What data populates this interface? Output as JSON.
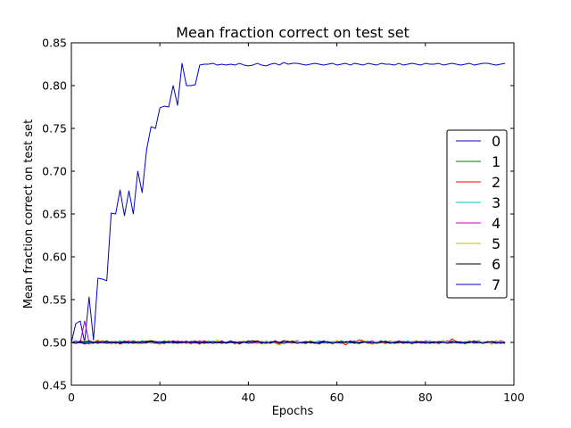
{
  "chart_data": {
    "type": "line",
    "title": "Mean fraction correct on test set",
    "xlabel": "Epochs",
    "ylabel": "Mean fraction correct on test set",
    "xlim": [
      0,
      100
    ],
    "ylim": [
      0.45,
      0.85
    ],
    "x_ticks": [
      "0",
      "20",
      "40",
      "60",
      "80",
      "100"
    ],
    "y_ticks": [
      "0.45",
      "0.50",
      "0.55",
      "0.60",
      "0.65",
      "0.70",
      "0.75",
      "0.80",
      "0.85"
    ],
    "grid": false,
    "legend_position": "center-right",
    "x": [
      0,
      1,
      2,
      3,
      4,
      5,
      6,
      7,
      8,
      9,
      10,
      11,
      12,
      13,
      14,
      15,
      16,
      17,
      18,
      19,
      20,
      21,
      22,
      23,
      24,
      25,
      26,
      27,
      28,
      29,
      30,
      31,
      32,
      33,
      34,
      35,
      36,
      37,
      38,
      39,
      40,
      41,
      42,
      43,
      44,
      45,
      46,
      47,
      48,
      49,
      50,
      51,
      52,
      53,
      54,
      55,
      56,
      57,
      58,
      59,
      60,
      61,
      62,
      63,
      64,
      65,
      66,
      67,
      68,
      69,
      70,
      71,
      72,
      73,
      74,
      75,
      76,
      77,
      78,
      79,
      80,
      81,
      82,
      83,
      84,
      85,
      86,
      87,
      88,
      89,
      90,
      91,
      92,
      93,
      94,
      95,
      96,
      97,
      98
    ],
    "series": [
      {
        "name": "0",
        "color": "#0000cc",
        "values": [
          0.5,
          0.522,
          0.525,
          0.5,
          0.553,
          0.503,
          0.575,
          0.574,
          0.572,
          0.651,
          0.65,
          0.678,
          0.648,
          0.677,
          0.65,
          0.7,
          0.675,
          0.725,
          0.752,
          0.75,
          0.774,
          0.776,
          0.775,
          0.8,
          0.777,
          0.826,
          0.8,
          0.8,
          0.801,
          0.824,
          0.825,
          0.825,
          0.826,
          0.824,
          0.825,
          0.824,
          0.825,
          0.824,
          0.826,
          0.824,
          0.823,
          0.824,
          0.826,
          0.824,
          0.823,
          0.825,
          0.826,
          0.824,
          0.827,
          0.825,
          0.826,
          0.826,
          0.825,
          0.824,
          0.825,
          0.826,
          0.825,
          0.824,
          0.825,
          0.826,
          0.824,
          0.825,
          0.826,
          0.824,
          0.826,
          0.825,
          0.824,
          0.826,
          0.825,
          0.824,
          0.826,
          0.825,
          0.825,
          0.824,
          0.826,
          0.824,
          0.825,
          0.826,
          0.825,
          0.824,
          0.826,
          0.825,
          0.825,
          0.826,
          0.824,
          0.825,
          0.826,
          0.825,
          0.824,
          0.825,
          0.826,
          0.824,
          0.825,
          0.826,
          0.826,
          0.825,
          0.824,
          0.825,
          0.826
        ]
      },
      {
        "name": "1",
        "color": "#008000",
        "values": [
          0.5,
          0.501,
          0.499,
          0.502,
          0.5,
          0.499,
          0.501,
          0.5,
          0.502,
          0.499,
          0.5,
          0.501,
          0.499,
          0.5,
          0.502,
          0.5,
          0.499,
          0.501,
          0.5,
          0.499,
          0.501,
          0.5,
          0.502,
          0.499,
          0.5,
          0.501,
          0.499,
          0.5,
          0.502,
          0.5,
          0.499,
          0.501,
          0.5,
          0.499,
          0.501,
          0.5,
          0.502,
          0.499,
          0.5,
          0.501,
          0.499,
          0.5,
          0.502,
          0.5,
          0.499,
          0.501,
          0.5,
          0.499,
          0.501,
          0.5,
          0.502,
          0.499,
          0.5,
          0.501,
          0.499,
          0.5,
          0.502,
          0.5,
          0.499,
          0.501,
          0.5,
          0.499,
          0.501,
          0.5,
          0.502,
          0.499,
          0.5,
          0.501,
          0.499,
          0.5,
          0.502,
          0.5,
          0.499,
          0.501,
          0.5,
          0.499,
          0.501,
          0.5,
          0.502,
          0.499,
          0.5,
          0.501,
          0.499,
          0.5,
          0.502,
          0.5,
          0.499,
          0.501,
          0.5,
          0.499,
          0.501,
          0.5,
          0.502,
          0.499,
          0.5,
          0.501,
          0.499,
          0.5,
          0.5
        ]
      },
      {
        "name": "2",
        "color": "#ff0000",
        "values": [
          0.5,
          0.499,
          0.502,
          0.5,
          0.498,
          0.501,
          0.5,
          0.502,
          0.499,
          0.5,
          0.501,
          0.498,
          0.5,
          0.502,
          0.499,
          0.501,
          0.5,
          0.499,
          0.502,
          0.5,
          0.498,
          0.501,
          0.5,
          0.499,
          0.502,
          0.5,
          0.499,
          0.501,
          0.5,
          0.498,
          0.502,
          0.5,
          0.499,
          0.501,
          0.5,
          0.499,
          0.502,
          0.5,
          0.498,
          0.501,
          0.5,
          0.499,
          0.502,
          0.5,
          0.499,
          0.501,
          0.5,
          0.498,
          0.502,
          0.5,
          0.499,
          0.501,
          0.5,
          0.499,
          0.502,
          0.5,
          0.498,
          0.501,
          0.5,
          0.499,
          0.502,
          0.5,
          0.497,
          0.501,
          0.5,
          0.503,
          0.502,
          0.5,
          0.498,
          0.501,
          0.5,
          0.499,
          0.502,
          0.5,
          0.499,
          0.501,
          0.5,
          0.498,
          0.502,
          0.5,
          0.499,
          0.501,
          0.5,
          0.499,
          0.502,
          0.5,
          0.504,
          0.501,
          0.5,
          0.499,
          0.502,
          0.5,
          0.499,
          0.501,
          0.5,
          0.498,
          0.502,
          0.5,
          0.499
        ]
      },
      {
        "name": "3",
        "color": "#00bfbf",
        "values": [
          0.5,
          0.502,
          0.5,
          0.499,
          0.501,
          0.5,
          0.502,
          0.499,
          0.5,
          0.501,
          0.5,
          0.502,
          0.499,
          0.5,
          0.501,
          0.499,
          0.502,
          0.5,
          0.499,
          0.501,
          0.5,
          0.502,
          0.499,
          0.5,
          0.501,
          0.5,
          0.502,
          0.499,
          0.5,
          0.501,
          0.499,
          0.502,
          0.5,
          0.499,
          0.501,
          0.5,
          0.502,
          0.499,
          0.5,
          0.501,
          0.5,
          0.502,
          0.499,
          0.5,
          0.501,
          0.499,
          0.502,
          0.5,
          0.499,
          0.501,
          0.5,
          0.502,
          0.499,
          0.5,
          0.501,
          0.5,
          0.502,
          0.499,
          0.5,
          0.501,
          0.499,
          0.502,
          0.5,
          0.499,
          0.501,
          0.5,
          0.502,
          0.499,
          0.5,
          0.501,
          0.5,
          0.502,
          0.499,
          0.5,
          0.501,
          0.499,
          0.502,
          0.5,
          0.499,
          0.501,
          0.5,
          0.502,
          0.499,
          0.5,
          0.501,
          0.5,
          0.502,
          0.499,
          0.5,
          0.501,
          0.499,
          0.502,
          0.5,
          0.499,
          0.501,
          0.5,
          0.502,
          0.499,
          0.5
        ]
      },
      {
        "name": "4",
        "color": "#bf00bf",
        "values": [
          0.5,
          0.501,
          0.5,
          0.525,
          0.5,
          0.499,
          0.502,
          0.5,
          0.499,
          0.501,
          0.5,
          0.499,
          0.502,
          0.5,
          0.499,
          0.501,
          0.5,
          0.502,
          0.499,
          0.5,
          0.501,
          0.499,
          0.5,
          0.502,
          0.5,
          0.499,
          0.501,
          0.5,
          0.499,
          0.502,
          0.5,
          0.499,
          0.501,
          0.5,
          0.502,
          0.499,
          0.5,
          0.501,
          0.499,
          0.5,
          0.502,
          0.5,
          0.499,
          0.501,
          0.5,
          0.499,
          0.502,
          0.5,
          0.499,
          0.501,
          0.5,
          0.502,
          0.499,
          0.5,
          0.501,
          0.499,
          0.5,
          0.502,
          0.5,
          0.499,
          0.501,
          0.5,
          0.499,
          0.502,
          0.5,
          0.499,
          0.501,
          0.5,
          0.502,
          0.499,
          0.5,
          0.501,
          0.499,
          0.5,
          0.502,
          0.5,
          0.499,
          0.501,
          0.5,
          0.499,
          0.502,
          0.5,
          0.499,
          0.501,
          0.5,
          0.502,
          0.499,
          0.5,
          0.501,
          0.499,
          0.5,
          0.502,
          0.5,
          0.499,
          0.501,
          0.5,
          0.499,
          0.502,
          0.5
        ]
      },
      {
        "name": "5",
        "color": "#bfbf00",
        "values": [
          0.501,
          0.499,
          0.5,
          0.502,
          0.499,
          0.501,
          0.503,
          0.499,
          0.5,
          0.498,
          0.501,
          0.5,
          0.502,
          0.499,
          0.501,
          0.498,
          0.5,
          0.502,
          0.499,
          0.501,
          0.5,
          0.498,
          0.502,
          0.5,
          0.499,
          0.501,
          0.5,
          0.498,
          0.502,
          0.5,
          0.499,
          0.501,
          0.5,
          0.503,
          0.499,
          0.5,
          0.501,
          0.498,
          0.5,
          0.502,
          0.499,
          0.501,
          0.5,
          0.498,
          0.502,
          0.5,
          0.499,
          0.497,
          0.5,
          0.502,
          0.499,
          0.501,
          0.5,
          0.498,
          0.502,
          0.5,
          0.499,
          0.501,
          0.5,
          0.498,
          0.502,
          0.5,
          0.499,
          0.501,
          0.5,
          0.498,
          0.502,
          0.5,
          0.499,
          0.501,
          0.5,
          0.498,
          0.502,
          0.5,
          0.499,
          0.501,
          0.5,
          0.498,
          0.502,
          0.5,
          0.499,
          0.501,
          0.5,
          0.498,
          0.502,
          0.5,
          0.499,
          0.501,
          0.5,
          0.498,
          0.502,
          0.5,
          0.499,
          0.501,
          0.5,
          0.498,
          0.502,
          0.5,
          0.499
        ]
      },
      {
        "name": "6",
        "color": "#000000",
        "values": [
          0.5,
          0.499,
          0.501,
          0.5,
          0.502,
          0.5,
          0.499,
          0.5,
          0.501,
          0.5,
          0.499,
          0.5,
          0.501,
          0.5,
          0.499,
          0.5,
          0.501,
          0.501,
          0.502,
          0.501,
          0.5,
          0.501,
          0.5,
          0.501,
          0.5,
          0.501,
          0.5,
          0.501,
          0.501,
          0.5,
          0.499,
          0.5,
          0.501,
          0.5,
          0.499,
          0.5,
          0.501,
          0.5,
          0.499,
          0.5,
          0.501,
          0.502,
          0.501,
          0.5,
          0.499,
          0.5,
          0.501,
          0.5,
          0.502,
          0.501,
          0.5,
          0.499,
          0.5,
          0.501,
          0.5,
          0.499,
          0.5,
          0.501,
          0.5,
          0.499,
          0.5,
          0.501,
          0.5,
          0.501,
          0.5,
          0.499,
          0.5,
          0.501,
          0.5,
          0.499,
          0.5,
          0.501,
          0.5,
          0.499,
          0.5,
          0.501,
          0.5,
          0.499,
          0.5,
          0.501,
          0.5,
          0.499,
          0.5,
          0.501,
          0.5,
          0.499,
          0.5,
          0.501,
          0.5,
          0.499,
          0.5,
          0.501,
          0.5,
          0.499,
          0.5,
          0.501,
          0.5,
          0.499,
          0.5
        ]
      },
      {
        "name": "7",
        "color": "#0000cc",
        "values": [
          0.5,
          0.499,
          0.5,
          0.498,
          0.5,
          0.499,
          0.501,
          0.5,
          0.499,
          0.5,
          0.501,
          0.499,
          0.5,
          0.499,
          0.501,
          0.5,
          0.499,
          0.5,
          0.501,
          0.499,
          0.5,
          0.499,
          0.501,
          0.5,
          0.499,
          0.5,
          0.501,
          0.499,
          0.5,
          0.499,
          0.501,
          0.5,
          0.499,
          0.5,
          0.501,
          0.499,
          0.5,
          0.499,
          0.501,
          0.5,
          0.499,
          0.5,
          0.501,
          0.499,
          0.5,
          0.499,
          0.501,
          0.5,
          0.499,
          0.5,
          0.501,
          0.499,
          0.5,
          0.499,
          0.501,
          0.5,
          0.499,
          0.5,
          0.501,
          0.499,
          0.5,
          0.499,
          0.501,
          0.5,
          0.499,
          0.5,
          0.501,
          0.499,
          0.5,
          0.499,
          0.501,
          0.5,
          0.499,
          0.5,
          0.501,
          0.499,
          0.5,
          0.499,
          0.501,
          0.5,
          0.499,
          0.5,
          0.501,
          0.499,
          0.5,
          0.499,
          0.501,
          0.5,
          0.499,
          0.5,
          0.501,
          0.499,
          0.5,
          0.499,
          0.501,
          0.5,
          0.499,
          0.5,
          0.499
        ]
      }
    ]
  }
}
